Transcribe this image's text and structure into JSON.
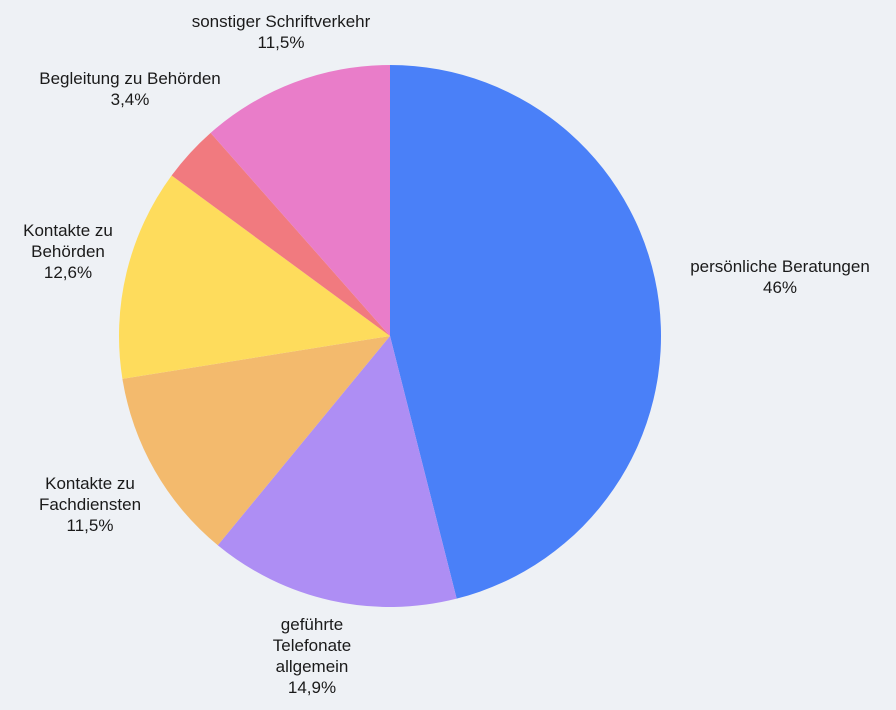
{
  "chart_data": {
    "type": "pie",
    "start_angle_deg": 0,
    "direction": "clockwise",
    "legend": "none",
    "slices": [
      {
        "label": [
          "persönliche Beratungen"
        ],
        "value_label": "46%",
        "value": 46.0,
        "color": "#4a80f8"
      },
      {
        "label": [
          "geführte",
          "Telefonate",
          "allgemein"
        ],
        "value_label": "14,9%",
        "value": 14.9,
        "color": "#ae8ef4"
      },
      {
        "label": [
          "Kontakte zu",
          "Fachdiensten"
        ],
        "value_label": "11,5%",
        "value": 11.5,
        "color": "#f3ba6d"
      },
      {
        "label": [
          "Kontakte zu",
          "Behörden"
        ],
        "value_label": "12,6%",
        "value": 12.6,
        "color": "#fedc5c"
      },
      {
        "label": [
          "Begleitung zu Behörden"
        ],
        "value_label": "3,4%",
        "value": 3.4,
        "color": "#f17a7f"
      },
      {
        "label": [
          "sonstiger Schriftverkehr"
        ],
        "value_label": "11,5%",
        "value": 11.5,
        "color": "#e97dc9"
      }
    ]
  }
}
